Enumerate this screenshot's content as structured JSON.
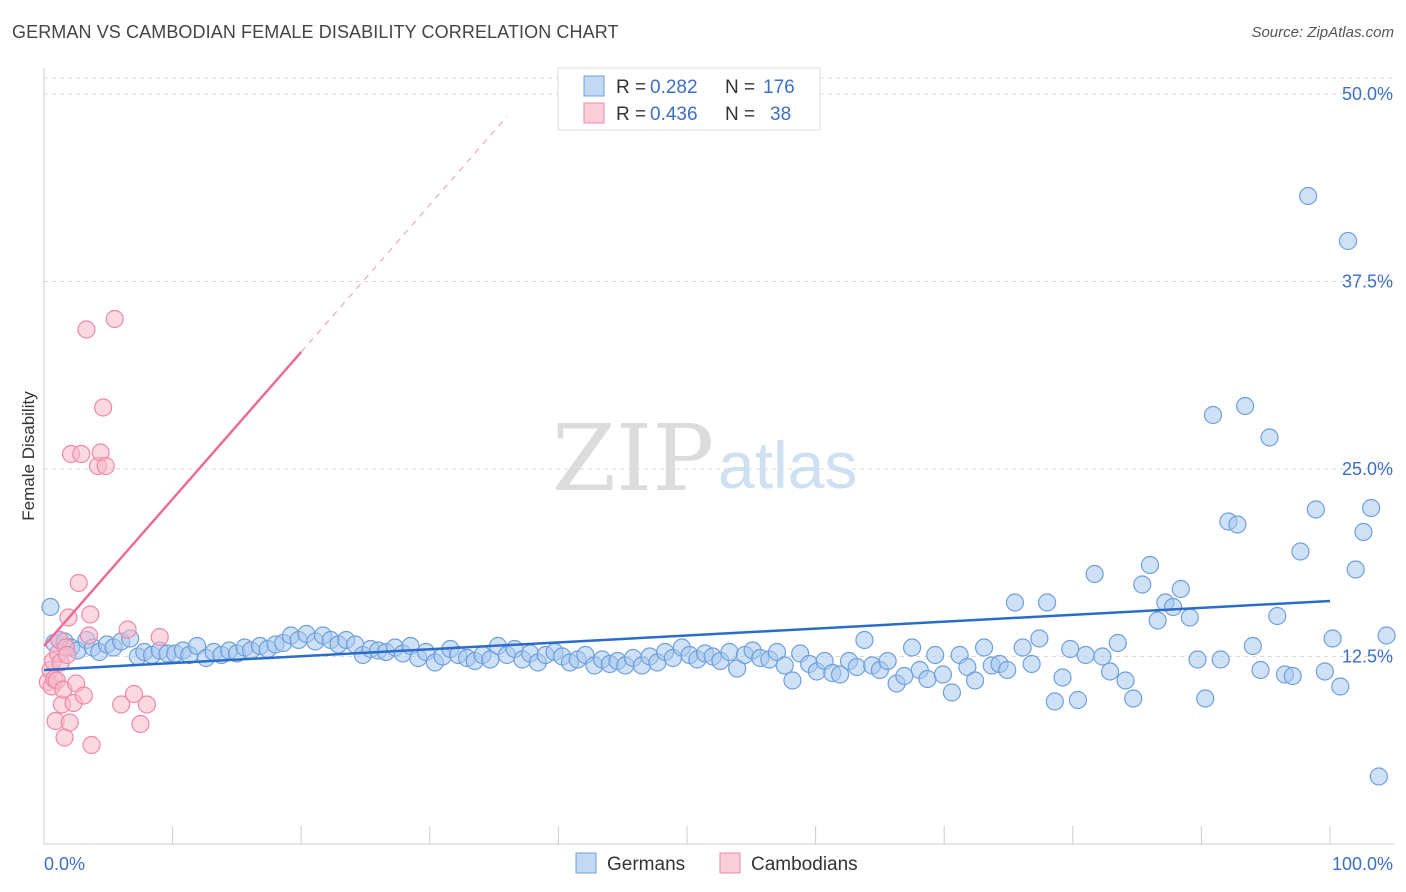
{
  "header": {
    "title": "GERMAN VS CAMBODIAN FEMALE DISABILITY CORRELATION CHART",
    "source": "Source: ZipAtlas.com"
  },
  "watermark": {
    "zip": "ZIP",
    "atlas": "atlas"
  },
  "legend": {
    "rows": [
      {
        "r_label": "R =",
        "r_value": "0.282",
        "n_label": "N =",
        "n_value": "176",
        "color": "#a8c8ee"
      },
      {
        "r_label": "R =",
        "r_value": "0.436",
        "n_label": "N =",
        "n_value": "38",
        "color": "#f7b8ca"
      }
    ]
  },
  "bottom_legend": {
    "germans": "Germans",
    "cambodians": "Cambodians"
  },
  "colors": {
    "german_fill": "#a8c8ee",
    "german_stroke": "#6e9fdc",
    "german_line": "#2a6cc7",
    "cambodian_fill": "#f7b8ca",
    "cambodian_stroke": "#ee88a6",
    "cambodian_line": "#e86e96",
    "tick": "#3b6fc6",
    "grid": "#d9d9d9"
  },
  "chart_data": {
    "type": "scatter",
    "title": "GERMAN VS CAMBODIAN FEMALE DISABILITY CORRELATION CHART",
    "xlabel": "",
    "ylabel": "Female Disability",
    "xlim": [
      0,
      100
    ],
    "ylim": [
      0,
      51
    ],
    "x_tick_labels": [
      "0.0%",
      "100.0%"
    ],
    "y_ticks": [
      12.5,
      25.0,
      37.5,
      50.0
    ],
    "y_tick_labels": [
      "12.5%",
      "25.0%",
      "37.5%",
      "50.0%"
    ],
    "grid": true,
    "series": [
      {
        "name": "Germans",
        "r": 0.282,
        "n": 176,
        "trend": {
          "x": [
            0,
            100
          ],
          "y": [
            11.6,
            16.2
          ]
        },
        "points": [
          [
            0.5,
            15.8
          ],
          [
            0.8,
            13.4
          ],
          [
            1.2,
            13.6
          ],
          [
            1.6,
            13.5
          ],
          [
            2.1,
            13.1
          ],
          [
            2.6,
            12.9
          ],
          [
            3.3,
            13.6
          ],
          [
            3.8,
            13.1
          ],
          [
            4.3,
            12.8
          ],
          [
            4.9,
            13.3
          ],
          [
            5.4,
            13.1
          ],
          [
            6.0,
            13.5
          ],
          [
            6.7,
            13.7
          ],
          [
            7.3,
            12.5
          ],
          [
            7.8,
            12.8
          ],
          [
            8.4,
            12.6
          ],
          [
            9.0,
            12.9
          ],
          [
            9.6,
            12.7
          ],
          [
            10.2,
            12.7
          ],
          [
            10.8,
            12.9
          ],
          [
            11.3,
            12.6
          ],
          [
            11.9,
            13.2
          ],
          [
            12.6,
            12.4
          ],
          [
            13.2,
            12.8
          ],
          [
            13.8,
            12.6
          ],
          [
            14.4,
            12.9
          ],
          [
            15.0,
            12.7
          ],
          [
            15.6,
            13.1
          ],
          [
            16.1,
            12.9
          ],
          [
            16.8,
            13.2
          ],
          [
            17.4,
            13.0
          ],
          [
            18.0,
            13.3
          ],
          [
            18.6,
            13.4
          ],
          [
            19.2,
            13.9
          ],
          [
            19.8,
            13.6
          ],
          [
            20.4,
            14.0
          ],
          [
            21.1,
            13.5
          ],
          [
            21.7,
            13.9
          ],
          [
            22.3,
            13.6
          ],
          [
            22.9,
            13.3
          ],
          [
            23.5,
            13.6
          ],
          [
            24.2,
            13.3
          ],
          [
            24.8,
            12.6
          ],
          [
            25.4,
            13.0
          ],
          [
            26.0,
            12.9
          ],
          [
            26.6,
            12.8
          ],
          [
            27.3,
            13.1
          ],
          [
            27.9,
            12.7
          ],
          [
            28.5,
            13.2
          ],
          [
            29.1,
            12.4
          ],
          [
            29.7,
            12.8
          ],
          [
            30.4,
            12.1
          ],
          [
            31.0,
            12.5
          ],
          [
            31.6,
            13.0
          ],
          [
            32.2,
            12.6
          ],
          [
            32.9,
            12.4
          ],
          [
            33.5,
            12.2
          ],
          [
            34.1,
            12.6
          ],
          [
            34.7,
            12.3
          ],
          [
            35.3,
            13.2
          ],
          [
            36.0,
            12.6
          ],
          [
            36.6,
            13.0
          ],
          [
            37.2,
            12.3
          ],
          [
            37.8,
            12.7
          ],
          [
            38.4,
            12.1
          ],
          [
            39.0,
            12.6
          ],
          [
            39.7,
            12.8
          ],
          [
            40.3,
            12.5
          ],
          [
            40.9,
            12.1
          ],
          [
            41.5,
            12.3
          ],
          [
            42.1,
            12.6
          ],
          [
            42.8,
            11.9
          ],
          [
            43.4,
            12.3
          ],
          [
            44.0,
            12.0
          ],
          [
            44.6,
            12.2
          ],
          [
            45.2,
            11.9
          ],
          [
            45.8,
            12.4
          ],
          [
            46.5,
            11.9
          ],
          [
            47.1,
            12.5
          ],
          [
            47.7,
            12.1
          ],
          [
            48.3,
            12.8
          ],
          [
            48.9,
            12.4
          ],
          [
            49.6,
            13.1
          ],
          [
            50.2,
            12.6
          ],
          [
            50.8,
            12.3
          ],
          [
            51.4,
            12.7
          ],
          [
            52.0,
            12.5
          ],
          [
            52.6,
            12.2
          ],
          [
            53.3,
            12.8
          ],
          [
            53.9,
            11.7
          ],
          [
            54.5,
            12.6
          ],
          [
            55.1,
            12.9
          ],
          [
            55.7,
            12.4
          ],
          [
            56.4,
            12.3
          ],
          [
            57.0,
            12.8
          ],
          [
            57.6,
            11.9
          ],
          [
            58.2,
            10.9
          ],
          [
            58.8,
            12.7
          ],
          [
            59.5,
            12.0
          ],
          [
            60.1,
            11.5
          ],
          [
            60.7,
            12.2
          ],
          [
            61.3,
            11.4
          ],
          [
            61.9,
            11.3
          ],
          [
            62.6,
            12.2
          ],
          [
            63.2,
            11.8
          ],
          [
            63.8,
            13.6
          ],
          [
            64.4,
            11.9
          ],
          [
            65.0,
            11.6
          ],
          [
            65.6,
            12.2
          ],
          [
            66.3,
            10.7
          ],
          [
            66.9,
            11.2
          ],
          [
            67.5,
            13.1
          ],
          [
            68.1,
            11.6
          ],
          [
            68.7,
            11.0
          ],
          [
            69.3,
            12.6
          ],
          [
            69.9,
            11.3
          ],
          [
            70.6,
            10.1
          ],
          [
            71.2,
            12.6
          ],
          [
            71.8,
            11.8
          ],
          [
            72.4,
            10.9
          ],
          [
            73.1,
            13.1
          ],
          [
            73.7,
            11.9
          ],
          [
            74.3,
            12.0
          ],
          [
            74.9,
            11.6
          ],
          [
            75.5,
            16.1
          ],
          [
            76.1,
            13.1
          ],
          [
            76.8,
            12.0
          ],
          [
            77.4,
            13.7
          ],
          [
            78.0,
            16.1
          ],
          [
            78.6,
            9.5
          ],
          [
            79.2,
            11.1
          ],
          [
            79.8,
            13.0
          ],
          [
            80.4,
            9.6
          ],
          [
            81.0,
            12.6
          ],
          [
            81.7,
            18.0
          ],
          [
            82.3,
            12.5
          ],
          [
            82.9,
            11.5
          ],
          [
            83.5,
            13.4
          ],
          [
            84.1,
            10.9
          ],
          [
            84.7,
            9.7
          ],
          [
            85.4,
            17.3
          ],
          [
            86.0,
            18.6
          ],
          [
            86.6,
            14.9
          ],
          [
            87.2,
            16.1
          ],
          [
            87.8,
            15.8
          ],
          [
            88.4,
            17.0
          ],
          [
            89.1,
            15.1
          ],
          [
            89.7,
            12.3
          ],
          [
            90.3,
            9.7
          ],
          [
            90.9,
            28.6
          ],
          [
            91.5,
            12.3
          ],
          [
            92.1,
            21.5
          ],
          [
            92.8,
            21.3
          ],
          [
            93.4,
            29.2
          ],
          [
            94.0,
            13.2
          ],
          [
            94.6,
            11.6
          ],
          [
            95.3,
            27.1
          ],
          [
            95.9,
            15.2
          ],
          [
            96.5,
            11.3
          ],
          [
            97.1,
            11.2
          ],
          [
            97.7,
            19.5
          ],
          [
            98.3,
            43.2
          ],
          [
            98.9,
            22.3
          ],
          [
            99.6,
            11.5
          ],
          [
            100.2,
            13.7
          ],
          [
            100.8,
            10.5
          ],
          [
            101.4,
            40.2
          ],
          [
            102.0,
            18.3
          ],
          [
            102.6,
            20.8
          ],
          [
            103.2,
            22.4
          ],
          [
            103.8,
            4.5
          ],
          [
            104.4,
            13.9
          ]
        ]
      },
      {
        "name": "Cambodians",
        "r": 0.436,
        "n": 38,
        "trend": {
          "x": [
            0,
            20
          ],
          "y": [
            13.2,
            32.8
          ]
        },
        "trend_extended": {
          "x": [
            20,
            36
          ],
          "y": [
            32.8,
            48.5
          ]
        },
        "points": [
          [
            0.3,
            10.8
          ],
          [
            0.5,
            11.6
          ],
          [
            0.6,
            10.5
          ],
          [
            0.7,
            12.2
          ],
          [
            0.8,
            11.0
          ],
          [
            0.9,
            8.2
          ],
          [
            1.0,
            10.9
          ],
          [
            1.1,
            12.7
          ],
          [
            1.2,
            13.6
          ],
          [
            1.3,
            12.1
          ],
          [
            1.4,
            9.3
          ],
          [
            1.5,
            10.3
          ],
          [
            1.6,
            7.1
          ],
          [
            1.7,
            13.1
          ],
          [
            1.8,
            12.6
          ],
          [
            1.9,
            15.1
          ],
          [
            2.0,
            8.1
          ],
          [
            2.1,
            26.0
          ],
          [
            2.3,
            9.4
          ],
          [
            2.5,
            10.7
          ],
          [
            2.7,
            17.4
          ],
          [
            2.9,
            26.0
          ],
          [
            3.1,
            9.9
          ],
          [
            3.3,
            34.3
          ],
          [
            3.5,
            13.9
          ],
          [
            3.6,
            15.3
          ],
          [
            3.7,
            6.6
          ],
          [
            4.2,
            25.2
          ],
          [
            4.4,
            26.1
          ],
          [
            4.6,
            29.1
          ],
          [
            4.8,
            25.2
          ],
          [
            5.5,
            35.0
          ],
          [
            6.0,
            9.3
          ],
          [
            6.5,
            14.3
          ],
          [
            7.0,
            10.0
          ],
          [
            7.5,
            8.0
          ],
          [
            8.0,
            9.3
          ],
          [
            9.0,
            13.8
          ]
        ]
      }
    ]
  }
}
